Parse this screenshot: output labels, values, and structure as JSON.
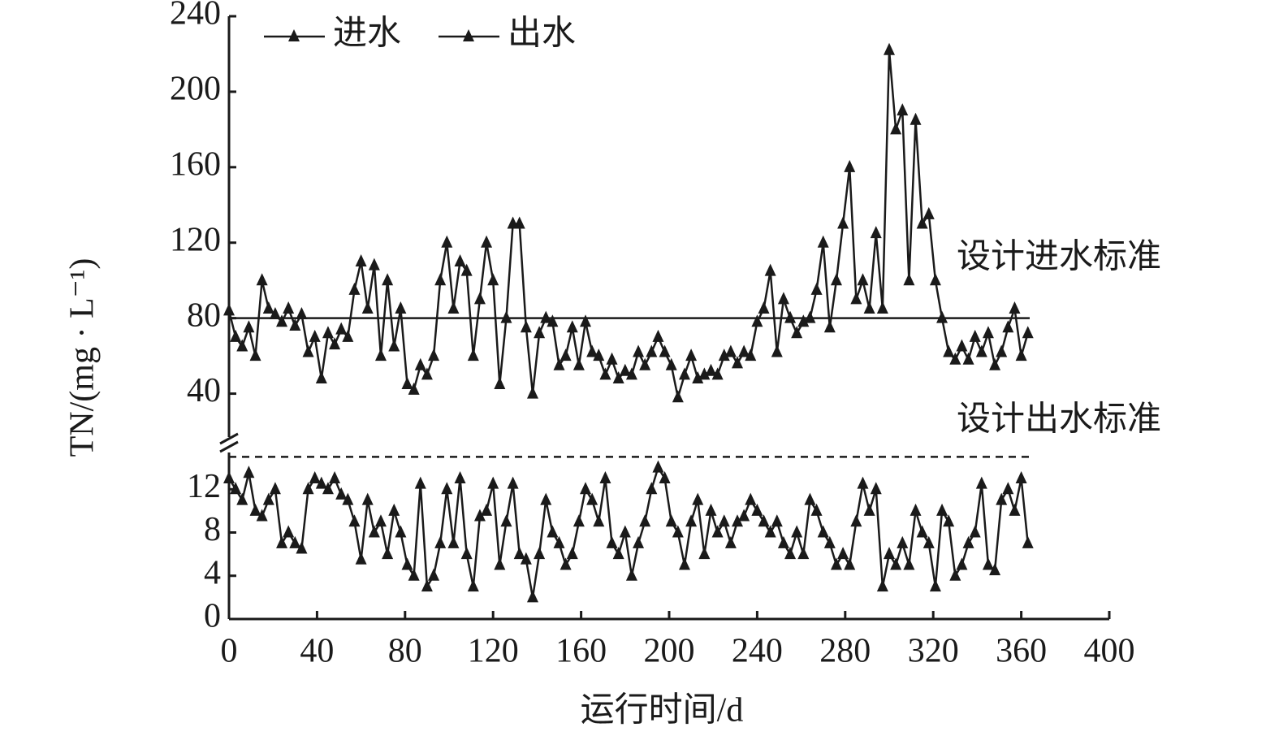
{
  "chart_data": [
    {
      "type": "line",
      "ylabel": "TN/(mg · L⁻¹)",
      "ylim": [
        17,
        240
      ],
      "yticks": [
        40,
        80,
        120,
        160,
        200,
        240
      ],
      "reference": {
        "value": 80,
        "label": "设计进水标准"
      },
      "series": [
        {
          "name": "进水",
          "color": "#1a1a1a",
          "x": [
            0,
            3,
            6,
            9,
            12,
            15,
            18,
            21,
            24,
            27,
            30,
            33,
            36,
            39,
            42,
            45,
            48,
            51,
            54,
            57,
            60,
            63,
            66,
            69,
            72,
            75,
            78,
            81,
            84,
            87,
            90,
            93,
            96,
            99,
            102,
            105,
            108,
            111,
            114,
            117,
            120,
            123,
            126,
            129,
            132,
            135,
            138,
            141,
            144,
            147,
            150,
            153,
            156,
            159,
            162,
            165,
            168,
            171,
            174,
            177,
            180,
            183,
            186,
            189,
            192,
            195,
            198,
            201,
            204,
            207,
            210,
            213,
            216,
            219,
            222,
            225,
            228,
            231,
            234,
            237,
            240,
            243,
            246,
            249,
            252,
            255,
            258,
            261,
            264,
            267,
            270,
            273,
            276,
            279,
            282,
            285,
            288,
            291,
            294,
            297,
            300,
            303,
            306,
            309,
            312,
            315,
            318,
            321,
            324,
            327,
            330,
            333,
            336,
            339,
            342,
            345,
            348,
            351,
            354,
            357,
            360,
            363
          ],
          "values": [
            84,
            70,
            65,
            75,
            60,
            100,
            85,
            82,
            78,
            85,
            76,
            82,
            62,
            70,
            48,
            72,
            66,
            74,
            70,
            95,
            110,
            85,
            108,
            60,
            100,
            65,
            85,
            45,
            42,
            55,
            50,
            60,
            100,
            120,
            85,
            110,
            105,
            60,
            90,
            120,
            100,
            45,
            80,
            130,
            130,
            75,
            40,
            72,
            80,
            78,
            55,
            60,
            75,
            55,
            78,
            62,
            60,
            50,
            58,
            48,
            52,
            50,
            62,
            55,
            62,
            70,
            62,
            55,
            38,
            50,
            60,
            48,
            50,
            52,
            50,
            60,
            62,
            56,
            62,
            60,
            78,
            85,
            105,
            62,
            90,
            80,
            72,
            78,
            80,
            95,
            120,
            75,
            100,
            130,
            160,
            90,
            100,
            85,
            125,
            85,
            222,
            180,
            190,
            100,
            185,
            130,
            135,
            100,
            80,
            62,
            58,
            65,
            58,
            70,
            62,
            72,
            55,
            62,
            75,
            85,
            60,
            72
          ]
        }
      ]
    },
    {
      "type": "line",
      "ylim": [
        0,
        15.4
      ],
      "yticks": [
        0,
        4,
        8,
        12
      ],
      "xlim": [
        0,
        400
      ],
      "xticks": [
        0,
        40,
        80,
        120,
        160,
        200,
        240,
        280,
        320,
        360,
        400
      ],
      "xlabel": "运行时间/d",
      "reference": {
        "value": 15,
        "label": "设计出水标准"
      },
      "series": [
        {
          "name": "出水",
          "color": "#1a1a1a",
          "x": [
            0,
            3,
            6,
            9,
            12,
            15,
            18,
            21,
            24,
            27,
            30,
            33,
            36,
            39,
            42,
            45,
            48,
            51,
            54,
            57,
            60,
            63,
            66,
            69,
            72,
            75,
            78,
            81,
            84,
            87,
            90,
            93,
            96,
            99,
            102,
            105,
            108,
            111,
            114,
            117,
            120,
            123,
            126,
            129,
            132,
            135,
            138,
            141,
            144,
            147,
            150,
            153,
            156,
            159,
            162,
            165,
            168,
            171,
            174,
            177,
            180,
            183,
            186,
            189,
            192,
            195,
            198,
            201,
            204,
            207,
            210,
            213,
            216,
            219,
            222,
            225,
            228,
            231,
            234,
            237,
            240,
            243,
            246,
            249,
            252,
            255,
            258,
            261,
            264,
            267,
            270,
            273,
            276,
            279,
            282,
            285,
            288,
            291,
            294,
            297,
            300,
            303,
            306,
            309,
            312,
            315,
            318,
            321,
            324,
            327,
            330,
            333,
            336,
            339,
            342,
            345,
            348,
            351,
            354,
            357,
            360,
            363
          ],
          "values": [
            13,
            12,
            11,
            13.5,
            10,
            9.5,
            11,
            12,
            7,
            8,
            7,
            6.5,
            12,
            13,
            12.5,
            12,
            13,
            11.5,
            11,
            9,
            5.5,
            11,
            8,
            9,
            6,
            10,
            8,
            5,
            4,
            12.5,
            3,
            4,
            7,
            12,
            7,
            13,
            6,
            3,
            9.5,
            10,
            12.5,
            5,
            9,
            12.5,
            6,
            5.5,
            2,
            6,
            11,
            8,
            7,
            5,
            6,
            9,
            12,
            11,
            9,
            13,
            7,
            6,
            8,
            4,
            7,
            9,
            12,
            14,
            13,
            9,
            8,
            5,
            9,
            11,
            6,
            10,
            8,
            9,
            7,
            9,
            9.5,
            11,
            10,
            9,
            8,
            9,
            7,
            6,
            8,
            6,
            11,
            10,
            8,
            7,
            5,
            6,
            5,
            9,
            12.5,
            10,
            12,
            3,
            6,
            5,
            7,
            5,
            10,
            8,
            7,
            3,
            10,
            9,
            4,
            5,
            7,
            8,
            12.5,
            5,
            4.5,
            11,
            12,
            10,
            13,
            7
          ]
        }
      ]
    }
  ]
}
